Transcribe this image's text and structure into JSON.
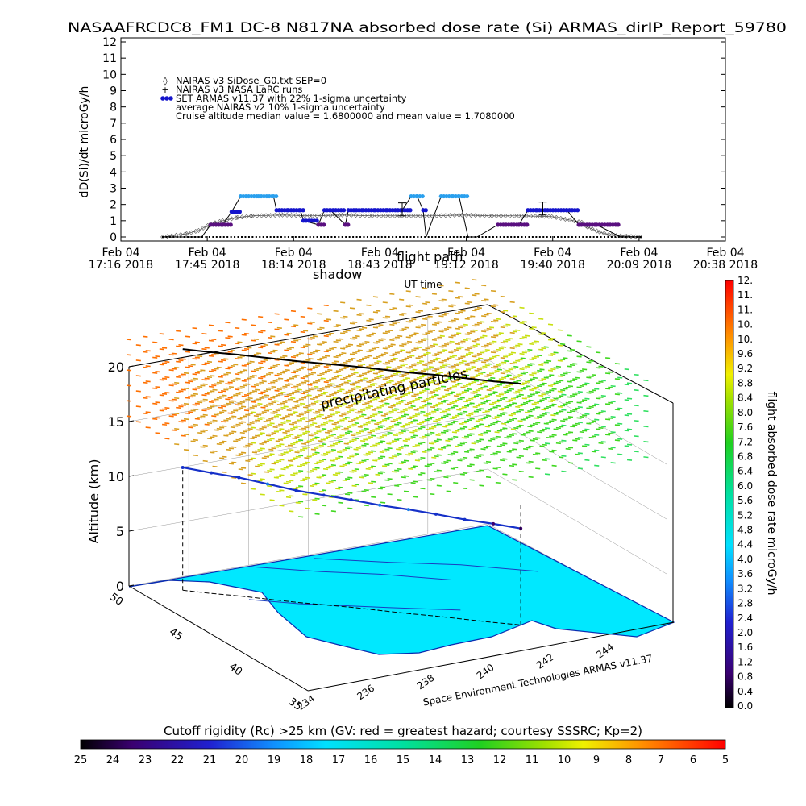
{
  "chart_data": [
    {
      "type": "line",
      "title": "NASAAFRCDC8_FM1 DC-8   N817NA absorbed dose rate (Si) ARMAS_dirIP_Report_59780",
      "ylabel": "dD(Si)/dt microGy/h",
      "xlabel": "UT time",
      "ylim": [
        0,
        12
      ],
      "y_ticks": [
        "0",
        "1",
        "2",
        "3",
        "4",
        "5",
        "6",
        "7",
        "8",
        "9",
        "10",
        "11",
        "12"
      ],
      "x_ticks": [
        {
          "date": "Feb 04",
          "time": "17:16",
          "year": "2018"
        },
        {
          "date": "Feb 04",
          "time": "17:45",
          "year": "2018"
        },
        {
          "date": "Feb 04",
          "time": "18:14",
          "year": "2018"
        },
        {
          "date": "Feb 04",
          "time": "18:43",
          "year": "2018"
        },
        {
          "date": "Feb 04",
          "time": "19:12",
          "year": "2018"
        },
        {
          "date": "Feb 04",
          "time": "19:40",
          "year": "2018"
        },
        {
          "date": "Feb 04",
          "time": "20:09",
          "year": "2018"
        },
        {
          "date": "Feb 04",
          "time": "20:38",
          "year": "2018"
        }
      ],
      "legend": [
        {
          "symbol": "◊",
          "text": "NAIRAS v3 SiDose_G0.txt SEP=0"
        },
        {
          "symbol": "+",
          "text": "NAIRAS v3 NASA LaRC runs"
        },
        {
          "symbol": "●",
          "text": "SET ARMAS v11.37 with 22% 1-sigma uncertainty"
        },
        {
          "symbol": "",
          "text": "average NAIRAS v2 10% 1-sigma uncertainty"
        },
        {
          "symbol": "",
          "text": "Cruise altitude median value = 1.6800000 and mean value = 1.7080000"
        }
      ],
      "annotations": [
        "shadow",
        "flight path"
      ],
      "series": [
        {
          "name": "NAIRAS v3 SiDose_G0.txt SEP=0",
          "x": [
            "17:30",
            "17:38",
            "17:42",
            "17:46",
            "17:50",
            "17:55",
            "18:00",
            "18:10",
            "18:20",
            "18:30",
            "18:40",
            "18:50",
            "19:00",
            "19:10",
            "19:20",
            "19:30",
            "19:40",
            "19:50",
            "19:52",
            "19:56",
            "20:00",
            "20:05",
            "20:10"
          ],
          "y": [
            0,
            0.2,
            0.4,
            0.8,
            1.0,
            1.2,
            1.3,
            1.35,
            1.3,
            1.35,
            1.3,
            1.3,
            1.3,
            1.35,
            1.3,
            1.3,
            1.25,
            0.9,
            0.6,
            0.3,
            0.1,
            0.05,
            0
          ]
        },
        {
          "name": "SET ARMAS v11.37 with 22% 1-sigma uncertainty",
          "x": [
            "17:30",
            "17:43",
            "17:46",
            "17:50",
            "17:53",
            "17:56",
            "18:02",
            "18:07",
            "18:08",
            "18:12",
            "18:16",
            "18:17",
            "18:22",
            "18:24",
            "18:26",
            "18:31",
            "18:32",
            "18:37",
            "18:41",
            "18:45",
            "18:50",
            "18:53",
            "18:55",
            "18:57",
            "18:58",
            "19:03",
            "19:07",
            "19:09",
            "19:12",
            "19:15",
            "19:22",
            "19:29",
            "19:32",
            "19:35",
            "19:45",
            "19:49",
            "19:55",
            "20:03",
            "20:10"
          ],
          "y": [
            0,
            0,
            0.75,
            0.75,
            1.55,
            2.5,
            2.5,
            2.5,
            1.65,
            1.65,
            1.65,
            1.0,
            0.75,
            1.65,
            1.65,
            0.75,
            1.65,
            1.65,
            1.65,
            1.65,
            1.65,
            2.5,
            2.5,
            1.65,
            0,
            2.5,
            2.5,
            2.5,
            0,
            0,
            0.75,
            0.75,
            1.65,
            1.65,
            1.65,
            0.75,
            0.75,
            0,
            0
          ]
        }
      ],
      "error_bars": [
        {
          "x": "18:50",
          "y": 1.7,
          "low": 1.3,
          "high": 2.1
        },
        {
          "x": "19:37",
          "y": 1.75,
          "low": 1.35,
          "high": 2.15
        }
      ],
      "colors": {
        "model": "#555555",
        "armas": "#1515cc",
        "armas_high": "#2aa0ee",
        "line": "#000000"
      }
    },
    {
      "type": "scatter",
      "title": "",
      "ylabel": "Altitude (km)",
      "z_ticks": [
        "0",
        "5",
        "10",
        "15",
        "20"
      ],
      "lat_ticks": [
        "35",
        "40",
        "45",
        "50"
      ],
      "lon_ticks": [
        "234",
        "236",
        "238",
        "240",
        "242",
        "244"
      ],
      "annotations": [
        "precipitating particles",
        "Space Environment Technologies ARMAS v11.37"
      ],
      "colorbar_right": {
        "label": "flight absorbed dose rate microGy/h",
        "ticks": [
          "0.0",
          "0.4",
          "0.8",
          "1.2",
          "1.6",
          "2.0",
          "2.4",
          "2.8",
          "3.2",
          "3.6",
          "4.0",
          "4.4",
          "4.8",
          "5.2",
          "5.6",
          "6.0",
          "6.4",
          "6.8",
          "7.2",
          "7.6",
          "8.0",
          "8.4",
          "8.8",
          "9.2",
          "9.6",
          "10.",
          "10.",
          "11.",
          "11.",
          "12."
        ]
      },
      "colorbar_bottom": {
        "label": "Cutoff rigidity (Rc) >25 km (GV: red = greatest hazard; courtesy SSSRC; Kp=2)",
        "ticks": [
          "25",
          "24",
          "23",
          "22",
          "21",
          "20",
          "19",
          "18",
          "17",
          "16",
          "15",
          "14",
          "13",
          "12",
          "11",
          "10",
          "9",
          "8",
          "7",
          "6",
          "5"
        ]
      },
      "flight_track": {
        "lon": [
          235.2,
          235.8,
          236.4,
          237.0,
          237.6,
          238.2,
          238.8,
          239.4,
          240.0,
          240.6,
          241.2,
          241.8,
          242.4
        ],
        "lat": [
          48.5,
          47.6,
          46.8,
          45.9,
          45.0,
          44.2,
          43.4,
          42.5,
          41.6,
          40.8,
          39.9,
          39.0,
          38.2
        ],
        "alt_km": [
          11.2,
          11.0,
          10.8,
          10.5,
          10.2,
          10.0,
          9.8,
          9.6,
          9.5,
          9.3,
          9.1,
          9.0,
          8.8
        ],
        "dose": [
          1.7,
          1.7,
          1.7,
          2.5,
          1.7,
          1.7,
          1.7,
          2.5,
          2.5,
          1.7,
          1.7,
          0.8,
          0.8
        ]
      },
      "colors": {
        "land": "#00e8ff",
        "coast": "#0a2cb0",
        "track": "#1530c8"
      }
    }
  ]
}
